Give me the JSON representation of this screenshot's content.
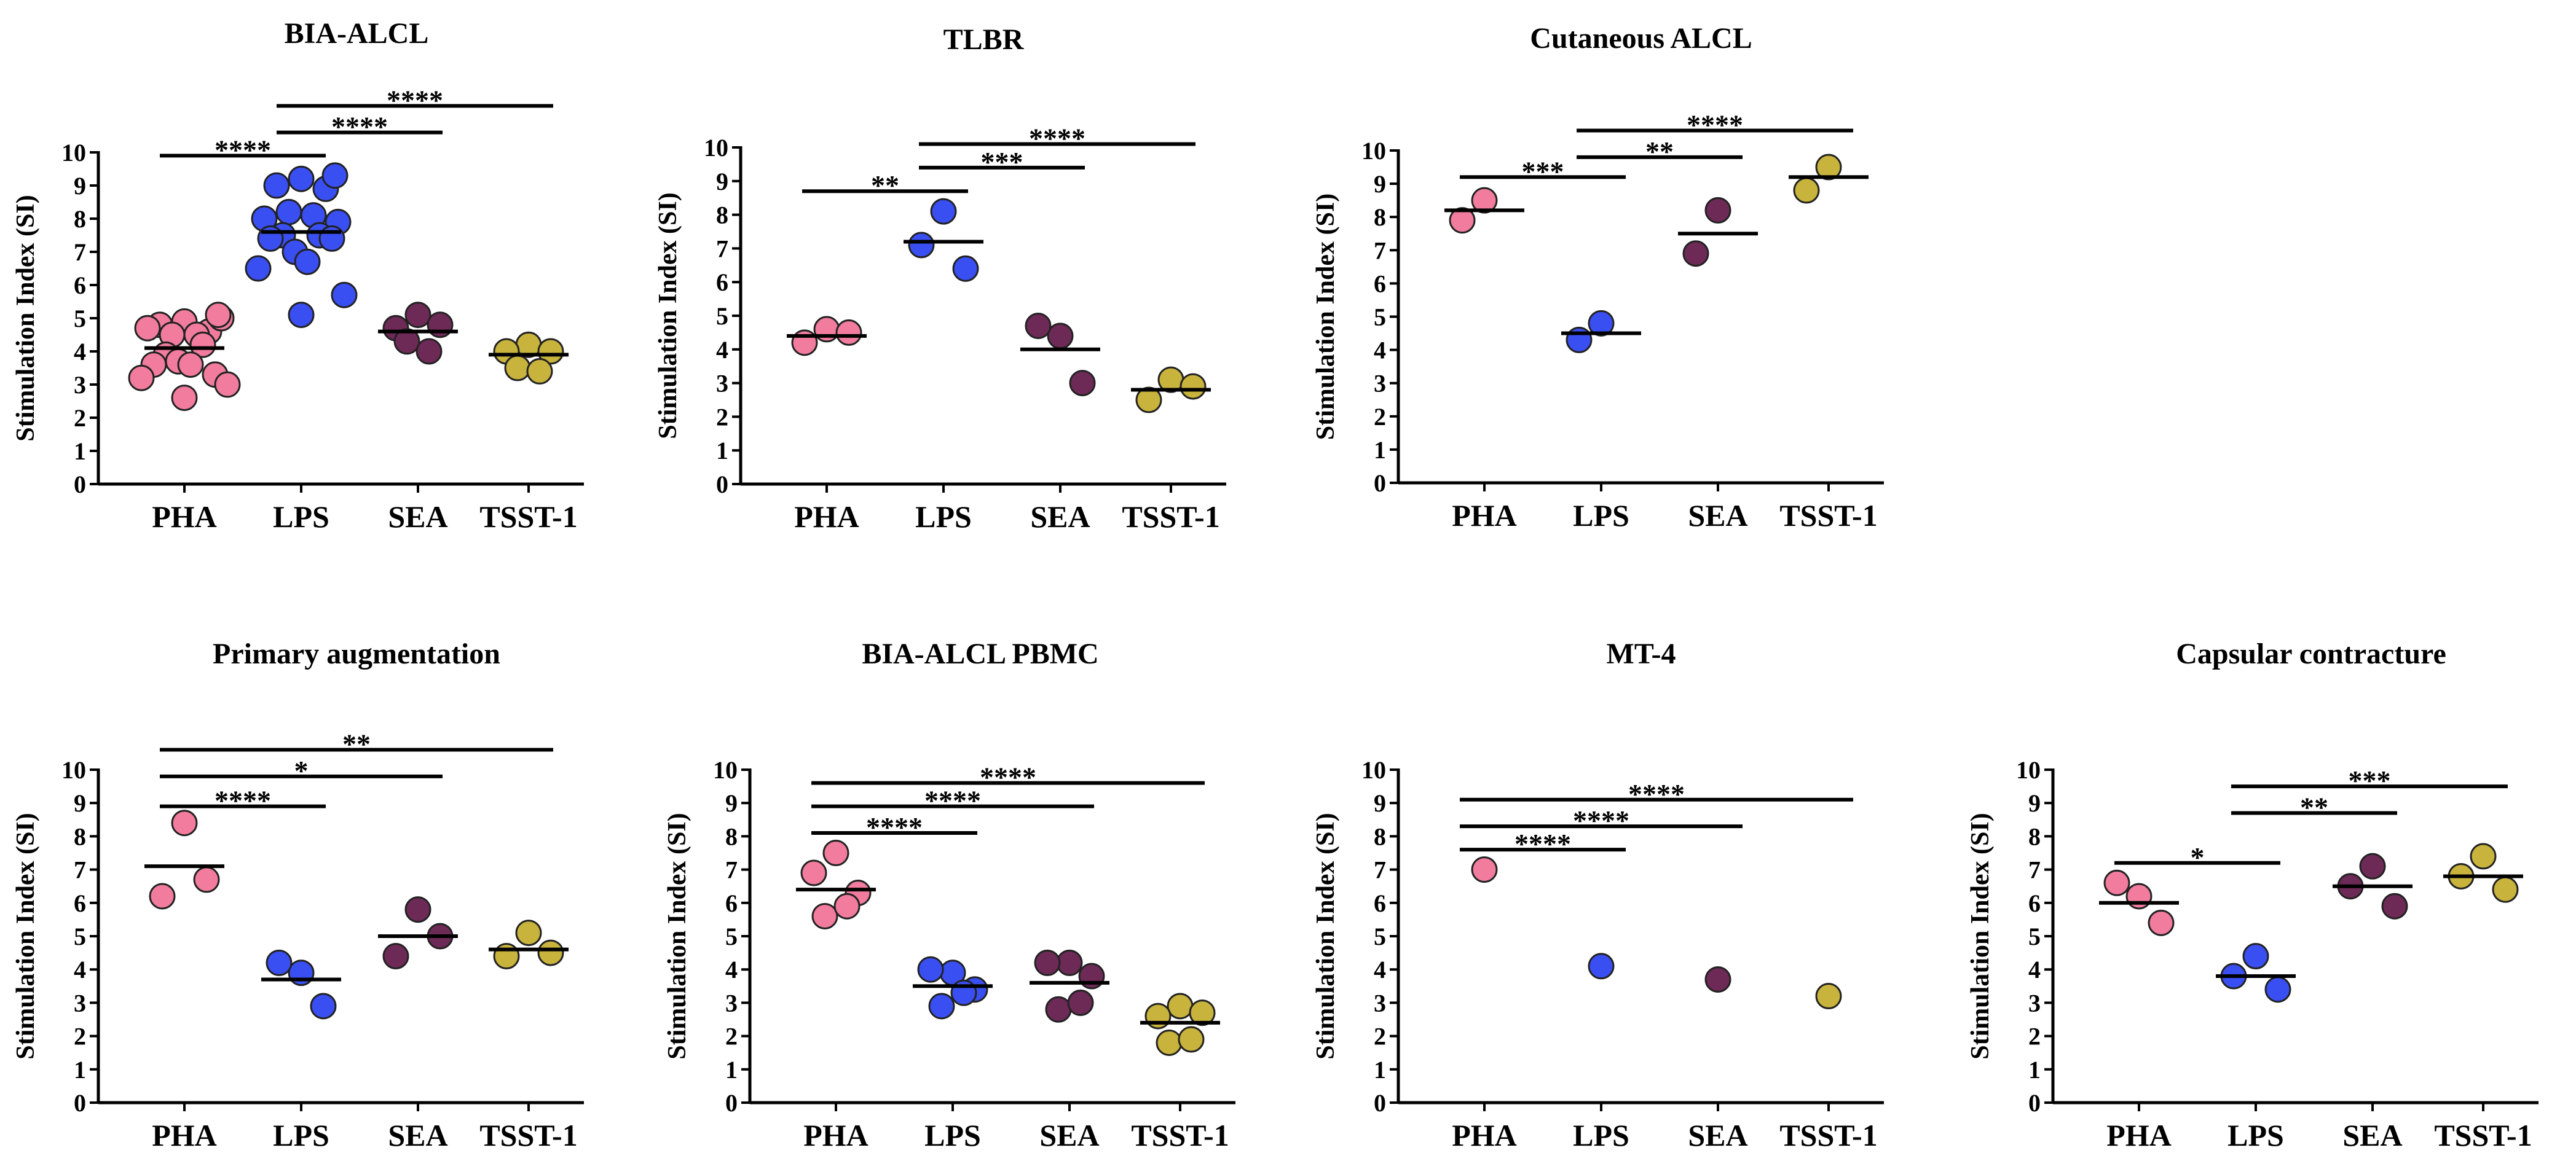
{
  "colors": {
    "PHA": "#f27c9e",
    "LPS": "#3a4ff2",
    "SEA": "#6e2a57",
    "TSST-1": "#c8b33c"
  },
  "chart_data": [
    {
      "type": "scatter",
      "title": "BIA-ALCL",
      "ylabel": "Stimulation Index (SI)",
      "categories": [
        "PHA",
        "LPS",
        "SEA",
        "TSST-1"
      ],
      "ylim": [
        0,
        10
      ],
      "yticks": [
        "0",
        "1",
        "2",
        "3",
        "4",
        "5",
        "6",
        "7",
        "8",
        "9",
        "10"
      ],
      "points": [
        [
          4.9,
          4.8,
          4.6,
          4.5,
          4.5,
          4.7,
          5.0,
          3.9,
          4.2,
          3.6,
          3.3,
          3.7,
          3.6,
          3.2,
          3.0,
          2.6,
          5.1
        ],
        [
          9.2,
          9.0,
          8.9,
          8.2,
          8.1,
          8.0,
          7.9,
          7.5,
          7.5,
          7.4,
          7.4,
          7.0,
          6.7,
          6.5,
          5.7,
          5.1,
          9.3
        ],
        [
          5.1,
          4.7,
          4.8,
          4.3,
          4.0
        ],
        [
          4.2,
          4.0,
          4.0,
          3.5,
          3.4
        ]
      ],
      "means": [
        4.1,
        7.6,
        4.6,
        3.9
      ],
      "comparisons": [
        {
          "from": 0,
          "to": 1,
          "y": 9.9,
          "label": "****"
        },
        {
          "from": 1,
          "to": 2,
          "y": 10.6,
          "label": "****"
        },
        {
          "from": 1,
          "to": 3,
          "y": 11.4,
          "label": "****"
        }
      ]
    },
    {
      "type": "scatter",
      "title": "TLBR",
      "ylabel": "Stimulation Index (SI)",
      "categories": [
        "PHA",
        "LPS",
        "SEA",
        "TSST-1"
      ],
      "ylim": [
        0,
        10
      ],
      "yticks": [
        "0",
        "1",
        "2",
        "3",
        "4",
        "5",
        "6",
        "7",
        "8",
        "9",
        "10"
      ],
      "points": [
        [
          4.6,
          4.2,
          4.5
        ],
        [
          8.1,
          7.1,
          6.4
        ],
        [
          4.4,
          4.7,
          3.0
        ],
        [
          3.1,
          2.5,
          2.9
        ]
      ],
      "means": [
        4.4,
        7.2,
        4.0,
        2.8
      ],
      "comparisons": [
        {
          "from": 0,
          "to": 1,
          "y": 8.7,
          "label": "**"
        },
        {
          "from": 1,
          "to": 2,
          "y": 9.4,
          "label": "***"
        },
        {
          "from": 1,
          "to": 3,
          "y": 10.1,
          "label": "****"
        }
      ]
    },
    {
      "type": "scatter",
      "title": "Cutaneous ALCL",
      "ylabel": "Stimulation Index (SI)",
      "categories": [
        "PHA",
        "LPS",
        "SEA",
        "TSST-1"
      ],
      "ylim": [
        0,
        10
      ],
      "yticks": [
        "0",
        "1",
        "2",
        "3",
        "4",
        "5",
        "6",
        "7",
        "8",
        "9",
        "10"
      ],
      "points": [
        [
          8.5,
          7.9
        ],
        [
          4.8,
          4.3
        ],
        [
          8.2,
          6.9
        ],
        [
          9.5,
          8.8
        ]
      ],
      "means": [
        8.2,
        4.5,
        7.5,
        9.2
      ],
      "comparisons": [
        {
          "from": 0,
          "to": 1,
          "y": 9.2,
          "label": "***"
        },
        {
          "from": 1,
          "to": 2,
          "y": 9.8,
          "label": "**"
        },
        {
          "from": 1,
          "to": 3,
          "y": 10.6,
          "label": "****"
        }
      ]
    },
    {
      "type": "scatter",
      "title": "Primary augmentation",
      "ylabel": "Stimulation Index (SI)",
      "categories": [
        "PHA",
        "LPS",
        "SEA",
        "TSST-1"
      ],
      "ylim": [
        0,
        10
      ],
      "yticks": [
        "0",
        "1",
        "2",
        "3",
        "4",
        "5",
        "6",
        "7",
        "8",
        "9",
        "10"
      ],
      "points": [
        [
          8.4,
          6.2,
          6.7
        ],
        [
          3.9,
          4.2,
          2.9
        ],
        [
          5.8,
          4.4,
          5.0
        ],
        [
          5.1,
          4.4,
          4.5
        ]
      ],
      "means": [
        7.1,
        3.7,
        5.0,
        4.6
      ],
      "comparisons": [
        {
          "from": 0,
          "to": 1,
          "y": 8.9,
          "label": "****"
        },
        {
          "from": 0,
          "to": 2,
          "y": 9.8,
          "label": "*"
        },
        {
          "from": 0,
          "to": 3,
          "y": 10.6,
          "label": "**"
        }
      ]
    },
    {
      "type": "scatter",
      "title": "BIA-ALCL PBMC",
      "ylabel": "Stimulation Index (SI)",
      "categories": [
        "PHA",
        "LPS",
        "SEA",
        "TSST-1"
      ],
      "ylim": [
        0,
        10
      ],
      "yticks": [
        "0",
        "1",
        "2",
        "3",
        "4",
        "5",
        "6",
        "7",
        "8",
        "9",
        "10"
      ],
      "points": [
        [
          7.5,
          6.9,
          6.3,
          5.6,
          5.9
        ],
        [
          3.9,
          4.0,
          3.4,
          2.9,
          3.3
        ],
        [
          4.2,
          4.2,
          3.8,
          2.8,
          3.0
        ],
        [
          2.9,
          2.6,
          2.7,
          1.8,
          1.9
        ]
      ],
      "means": [
        6.4,
        3.5,
        3.6,
        2.4
      ],
      "comparisons": [
        {
          "from": 0,
          "to": 1,
          "y": 8.1,
          "label": "****"
        },
        {
          "from": 0,
          "to": 2,
          "y": 8.9,
          "label": "****"
        },
        {
          "from": 0,
          "to": 3,
          "y": 9.6,
          "label": "****"
        }
      ]
    },
    {
      "type": "scatter",
      "title": "MT-4",
      "ylabel": "Stimulation Index (SI)",
      "categories": [
        "PHA",
        "LPS",
        "SEA",
        "TSST-1"
      ],
      "ylim": [
        0,
        10
      ],
      "yticks": [
        "0",
        "1",
        "2",
        "3",
        "4",
        "5",
        "6",
        "7",
        "8",
        "9",
        "10"
      ],
      "points": [
        [
          7.0
        ],
        [
          4.1
        ],
        [
          3.7
        ],
        [
          3.2
        ]
      ],
      "means": [],
      "comparisons": [
        {
          "from": 0,
          "to": 1,
          "y": 7.6,
          "label": "****"
        },
        {
          "from": 0,
          "to": 2,
          "y": 8.3,
          "label": "****"
        },
        {
          "from": 0,
          "to": 3,
          "y": 9.1,
          "label": "****"
        }
      ]
    },
    {
      "type": "scatter",
      "title": "Capsular contracture",
      "ylabel": "Stimulation Index (SI)",
      "categories": [
        "PHA",
        "LPS",
        "SEA",
        "TSST-1"
      ],
      "ylim": [
        0,
        10
      ],
      "yticks": [
        "0",
        "1",
        "2",
        "3",
        "4",
        "5",
        "6",
        "7",
        "8",
        "9",
        "10"
      ],
      "points": [
        [
          6.2,
          6.6,
          5.4
        ],
        [
          4.4,
          3.8,
          3.4
        ],
        [
          7.1,
          6.5,
          5.9
        ],
        [
          7.4,
          6.8,
          6.4
        ]
      ],
      "means": [
        6.0,
        3.8,
        6.5,
        6.8
      ],
      "comparisons": [
        {
          "from": 0,
          "to": 1,
          "y": 7.2,
          "label": "*"
        },
        {
          "from": 1,
          "to": 2,
          "y": 8.7,
          "label": "**"
        },
        {
          "from": 1,
          "to": 3,
          "y": 9.5,
          "label": "***"
        }
      ]
    }
  ]
}
